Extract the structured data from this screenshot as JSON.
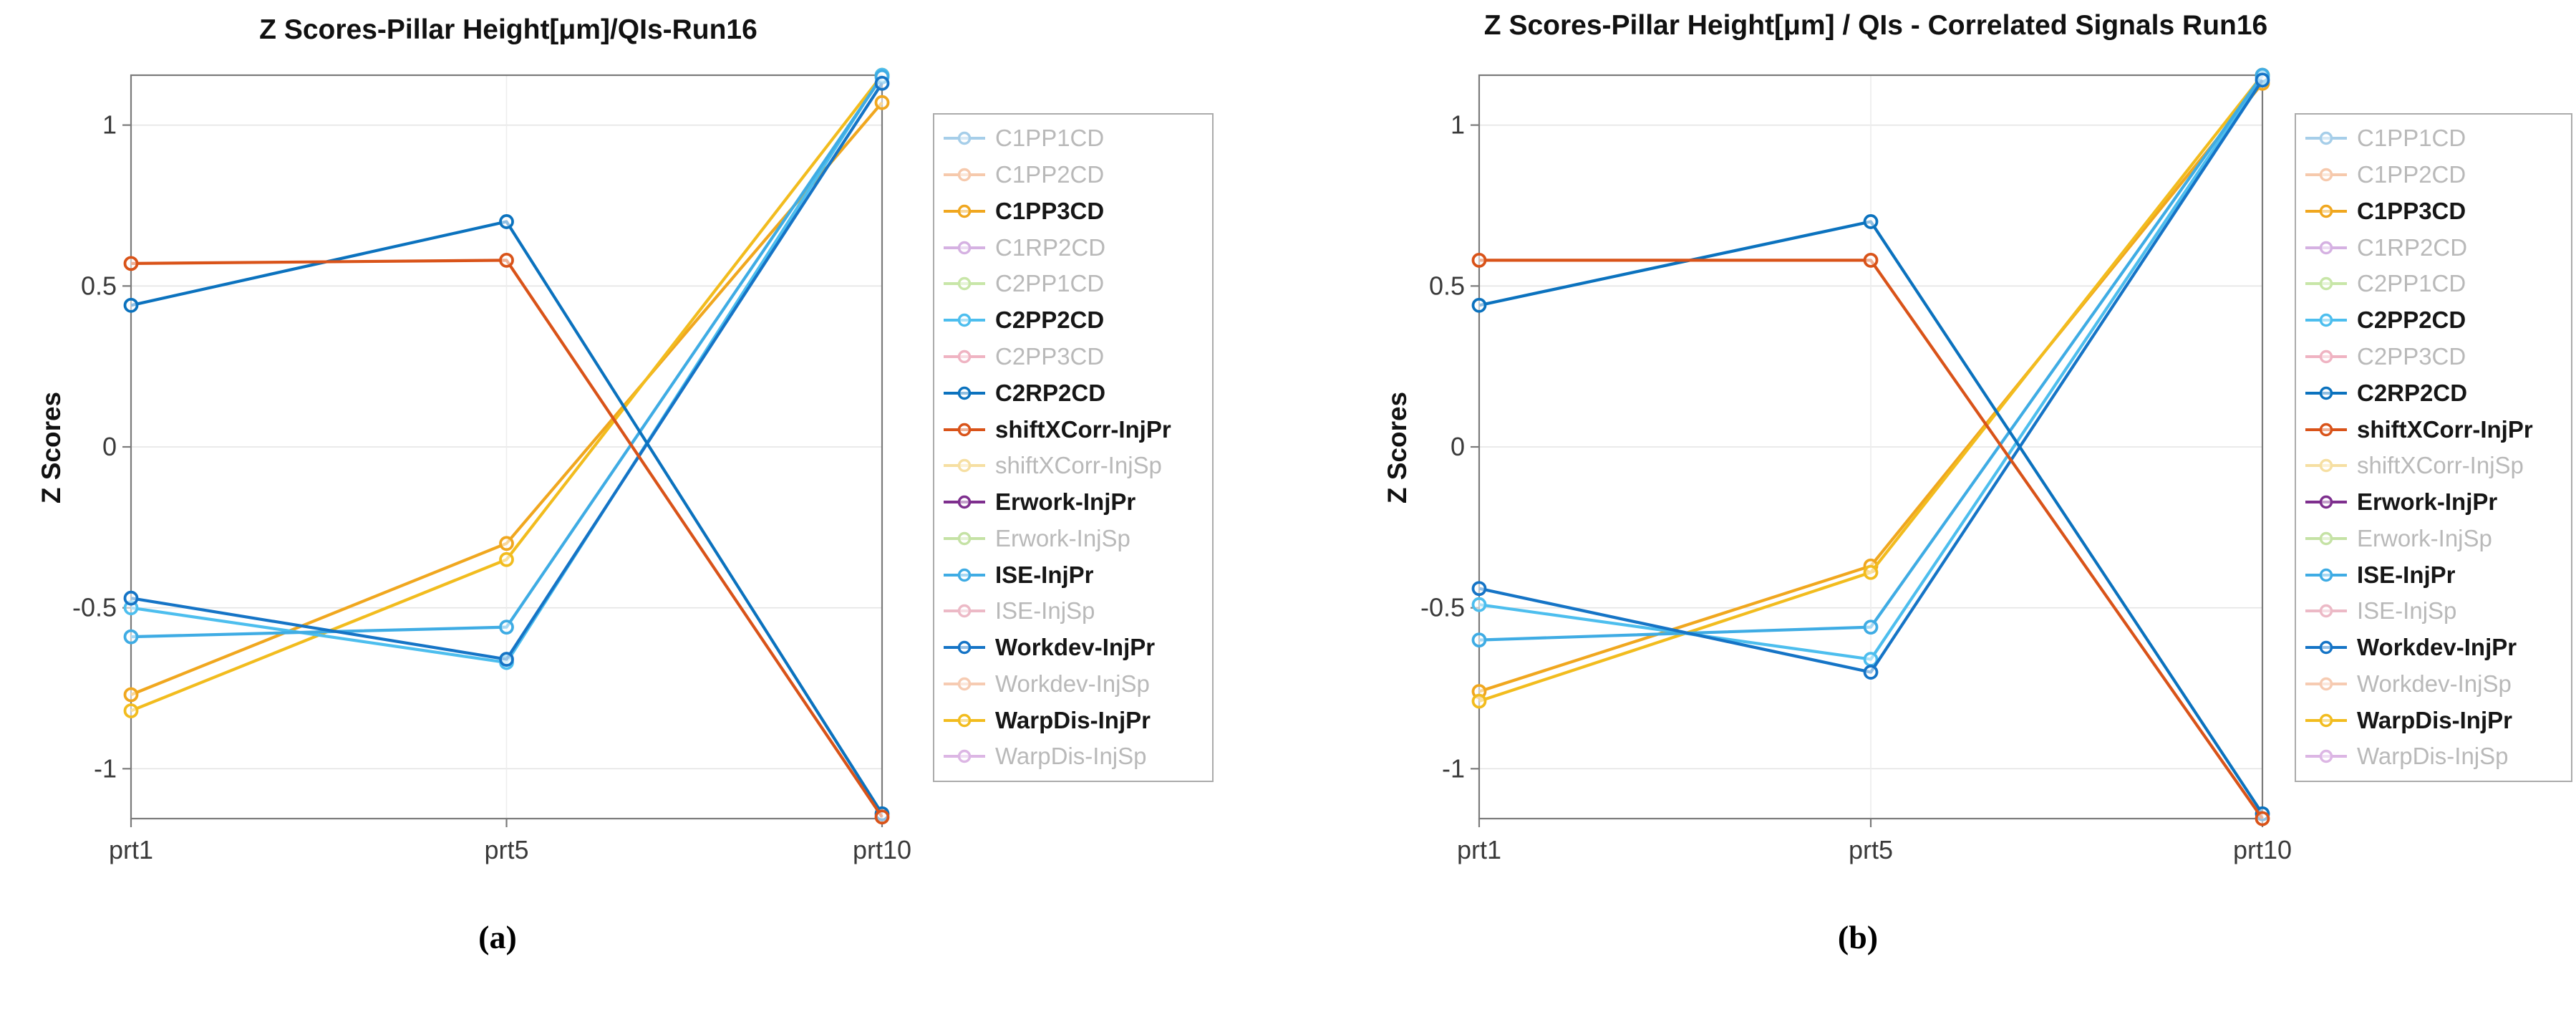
{
  "chart_data": [
    {
      "type": "line",
      "panel_label": "(a)",
      "title": "Z Scores-Pillar Height[μm]/QIs-Run16",
      "ylabel": "Z Scores",
      "categories": [
        "prt1",
        "prt5",
        "prt10"
      ],
      "ylim": [
        -1.155,
        1.155
      ],
      "yticks": [
        -1,
        -0.5,
        0,
        0.5,
        1
      ],
      "ytick_labels": [
        "-1",
        "-0.5",
        "0",
        "0.5",
        "1"
      ],
      "grid": true,
      "legend_position": "right-outside",
      "series": [
        {
          "name": "C1PP3CD",
          "color": "#F0A71F",
          "values": [
            -0.77,
            -0.3,
            1.07
          ]
        },
        {
          "name": "WarpDis-InjPr",
          "color": "#F2BC1E",
          "values": [
            -0.82,
            -0.35,
            1.17
          ]
        },
        {
          "name": "C2PP2CD",
          "color": "#4DBEEE",
          "values": [
            -0.5,
            -0.67,
            1.17
          ]
        },
        {
          "name": "ISE-InjPr",
          "color": "#3FACE4",
          "values": [
            -0.59,
            -0.56,
            1.15
          ]
        },
        {
          "name": "Workdev-InjPr",
          "color": "#1574C6",
          "values": [
            -0.47,
            -0.66,
            1.13
          ]
        },
        {
          "name": "C2RP2CD",
          "color": "#0B72BE",
          "values": [
            0.44,
            0.7,
            -1.14
          ]
        },
        {
          "name": "shiftXCorr-InjPr",
          "color": "#D95319",
          "values": [
            0.57,
            0.58,
            -1.15
          ]
        }
      ],
      "legend": [
        {
          "label": "C1PP1CD",
          "color": "#A6CEE9",
          "active": false
        },
        {
          "label": "C1PP2CD",
          "color": "#F6C9AC",
          "active": false
        },
        {
          "label": "C1PP3CD",
          "color": "#F0A71F",
          "active": true
        },
        {
          "label": "C1RP2CD",
          "color": "#D5B1E2",
          "active": false
        },
        {
          "label": "C2PP1CD",
          "color": "#C8E6A8",
          "active": false
        },
        {
          "label": "C2PP2CD",
          "color": "#4DBEEE",
          "active": true
        },
        {
          "label": "C2PP3CD",
          "color": "#EFB3C2",
          "active": false
        },
        {
          "label": "C2RP2CD",
          "color": "#0B72BE",
          "active": true
        },
        {
          "label": "shiftXCorr-InjPr",
          "color": "#D95319",
          "active": true
        },
        {
          "label": "shiftXCorr-InjSp",
          "color": "#F6DFA2",
          "active": false
        },
        {
          "label": "Erwork-InjPr",
          "color": "#7E2F8E",
          "active": true
        },
        {
          "label": "Erwork-InjSp",
          "color": "#C5E2A5",
          "active": false
        },
        {
          "label": "ISE-InjPr",
          "color": "#3FACE4",
          "active": true
        },
        {
          "label": "ISE-InjSp",
          "color": "#ECB9C6",
          "active": false
        },
        {
          "label": "Workdev-InjPr",
          "color": "#1574C6",
          "active": true
        },
        {
          "label": "Workdev-InjSp",
          "color": "#F6CBB2",
          "active": false
        },
        {
          "label": "WarpDis-InjPr",
          "color": "#F2BC1E",
          "active": true
        },
        {
          "label": "WarpDis-InjSp",
          "color": "#DCB6E4",
          "active": false
        }
      ]
    },
    {
      "type": "line",
      "panel_label": "(b)",
      "title": "Z Scores-Pillar Height[μm] / QIs - Correlated Signals Run16",
      "ylabel": "Z Scores",
      "categories": [
        "prt1",
        "prt5",
        "prt10"
      ],
      "ylim": [
        -1.155,
        1.155
      ],
      "yticks": [
        -1,
        -0.5,
        0,
        0.5,
        1
      ],
      "ytick_labels": [
        "-1",
        "-0.5",
        "0",
        "0.5",
        "1"
      ],
      "grid": true,
      "legend_position": "right-outside",
      "series": [
        {
          "name": "C1PP3CD",
          "color": "#F0A71F",
          "values": [
            -0.76,
            -0.37,
            1.13
          ]
        },
        {
          "name": "WarpDis-InjPr",
          "color": "#F2BC1E",
          "values": [
            -0.79,
            -0.39,
            1.18
          ]
        },
        {
          "name": "C2PP2CD",
          "color": "#4DBEEE",
          "values": [
            -0.49,
            -0.66,
            1.15
          ]
        },
        {
          "name": "ISE-InjPr",
          "color": "#3FACE4",
          "values": [
            -0.6,
            -0.56,
            1.16
          ]
        },
        {
          "name": "Workdev-InjPr",
          "color": "#1574C6",
          "values": [
            -0.44,
            -0.7,
            1.14
          ]
        },
        {
          "name": "C2RP2CD",
          "color": "#0B72BE",
          "values": [
            0.44,
            0.7,
            -1.14
          ]
        },
        {
          "name": "shiftXCorr-InjPr",
          "color": "#D95319",
          "values": [
            0.58,
            0.58,
            -1.16
          ]
        }
      ],
      "legend": [
        {
          "label": "C1PP1CD",
          "color": "#A6CEE9",
          "active": false
        },
        {
          "label": "C1PP2CD",
          "color": "#F6C9AC",
          "active": false
        },
        {
          "label": "C1PP3CD",
          "color": "#F0A71F",
          "active": true
        },
        {
          "label": "C1RP2CD",
          "color": "#D5B1E2",
          "active": false
        },
        {
          "label": "C2PP1CD",
          "color": "#C8E6A8",
          "active": false
        },
        {
          "label": "C2PP2CD",
          "color": "#4DBEEE",
          "active": true
        },
        {
          "label": "C2PP3CD",
          "color": "#EFB3C2",
          "active": false
        },
        {
          "label": "C2RP2CD",
          "color": "#0B72BE",
          "active": true
        },
        {
          "label": "shiftXCorr-InjPr",
          "color": "#D95319",
          "active": true
        },
        {
          "label": "shiftXCorr-InjSp",
          "color": "#F6DFA2",
          "active": false
        },
        {
          "label": "Erwork-InjPr",
          "color": "#7E2F8E",
          "active": true
        },
        {
          "label": "Erwork-InjSp",
          "color": "#C5E2A5",
          "active": false
        },
        {
          "label": "ISE-InjPr",
          "color": "#3FACE4",
          "active": true
        },
        {
          "label": "ISE-InjSp",
          "color": "#ECB9C6",
          "active": false
        },
        {
          "label": "Workdev-InjPr",
          "color": "#1574C6",
          "active": true
        },
        {
          "label": "Workdev-InjSp",
          "color": "#F6CBB2",
          "active": false
        },
        {
          "label": "WarpDis-InjPr",
          "color": "#F2BC1E",
          "active": true
        },
        {
          "label": "WarpDis-InjSp",
          "color": "#DCB6E4",
          "active": false
        }
      ]
    }
  ]
}
